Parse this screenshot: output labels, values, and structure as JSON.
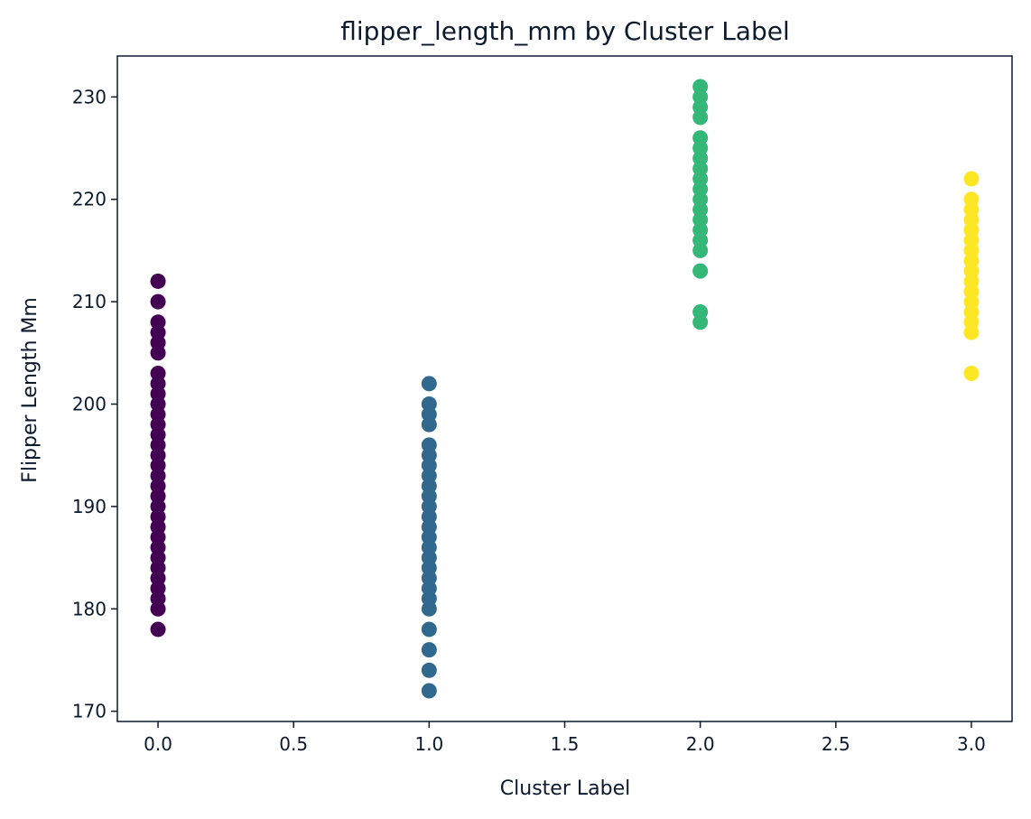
{
  "chart_data": {
    "type": "scatter",
    "title": "flipper_length_mm by Cluster Label",
    "xlabel": "Cluster Label",
    "ylabel": "Flipper Length Mm",
    "xlim": [
      -0.15,
      3.15
    ],
    "ylim": [
      169,
      234
    ],
    "xticks": [
      "0.0",
      "0.5",
      "1.0",
      "1.5",
      "2.0",
      "2.5",
      "3.0"
    ],
    "xtick_values": [
      0,
      0.5,
      1,
      1.5,
      2,
      2.5,
      3
    ],
    "yticks": [
      "170",
      "180",
      "190",
      "200",
      "210",
      "220",
      "230"
    ],
    "ytick_values": [
      170,
      180,
      190,
      200,
      210,
      220,
      230
    ],
    "grid": false,
    "legend": "none",
    "colormap": "viridis",
    "series": [
      {
        "x": 0,
        "color": "#440154",
        "y": [
          178,
          180,
          181,
          182,
          183,
          184,
          185,
          186,
          187,
          188,
          189,
          190,
          191,
          192,
          193,
          194,
          195,
          196,
          197,
          198,
          199,
          200,
          201,
          202,
          203,
          205,
          206,
          207,
          208,
          210,
          212
        ]
      },
      {
        "x": 1,
        "color": "#31688e",
        "y": [
          172,
          174,
          176,
          178,
          180,
          181,
          182,
          183,
          184,
          185,
          186,
          187,
          188,
          189,
          190,
          191,
          192,
          193,
          194,
          195,
          196,
          198,
          199,
          200,
          202
        ]
      },
      {
        "x": 2,
        "color": "#35b779",
        "y": [
          208,
          209,
          213,
          215,
          216,
          217,
          218,
          219,
          220,
          221,
          222,
          223,
          224,
          225,
          226,
          228,
          229,
          230,
          231
        ]
      },
      {
        "x": 3,
        "color": "#fde725",
        "y": [
          203,
          207,
          208,
          209,
          210,
          211,
          212,
          213,
          214,
          215,
          216,
          217,
          218,
          219,
          220,
          222
        ]
      }
    ]
  }
}
